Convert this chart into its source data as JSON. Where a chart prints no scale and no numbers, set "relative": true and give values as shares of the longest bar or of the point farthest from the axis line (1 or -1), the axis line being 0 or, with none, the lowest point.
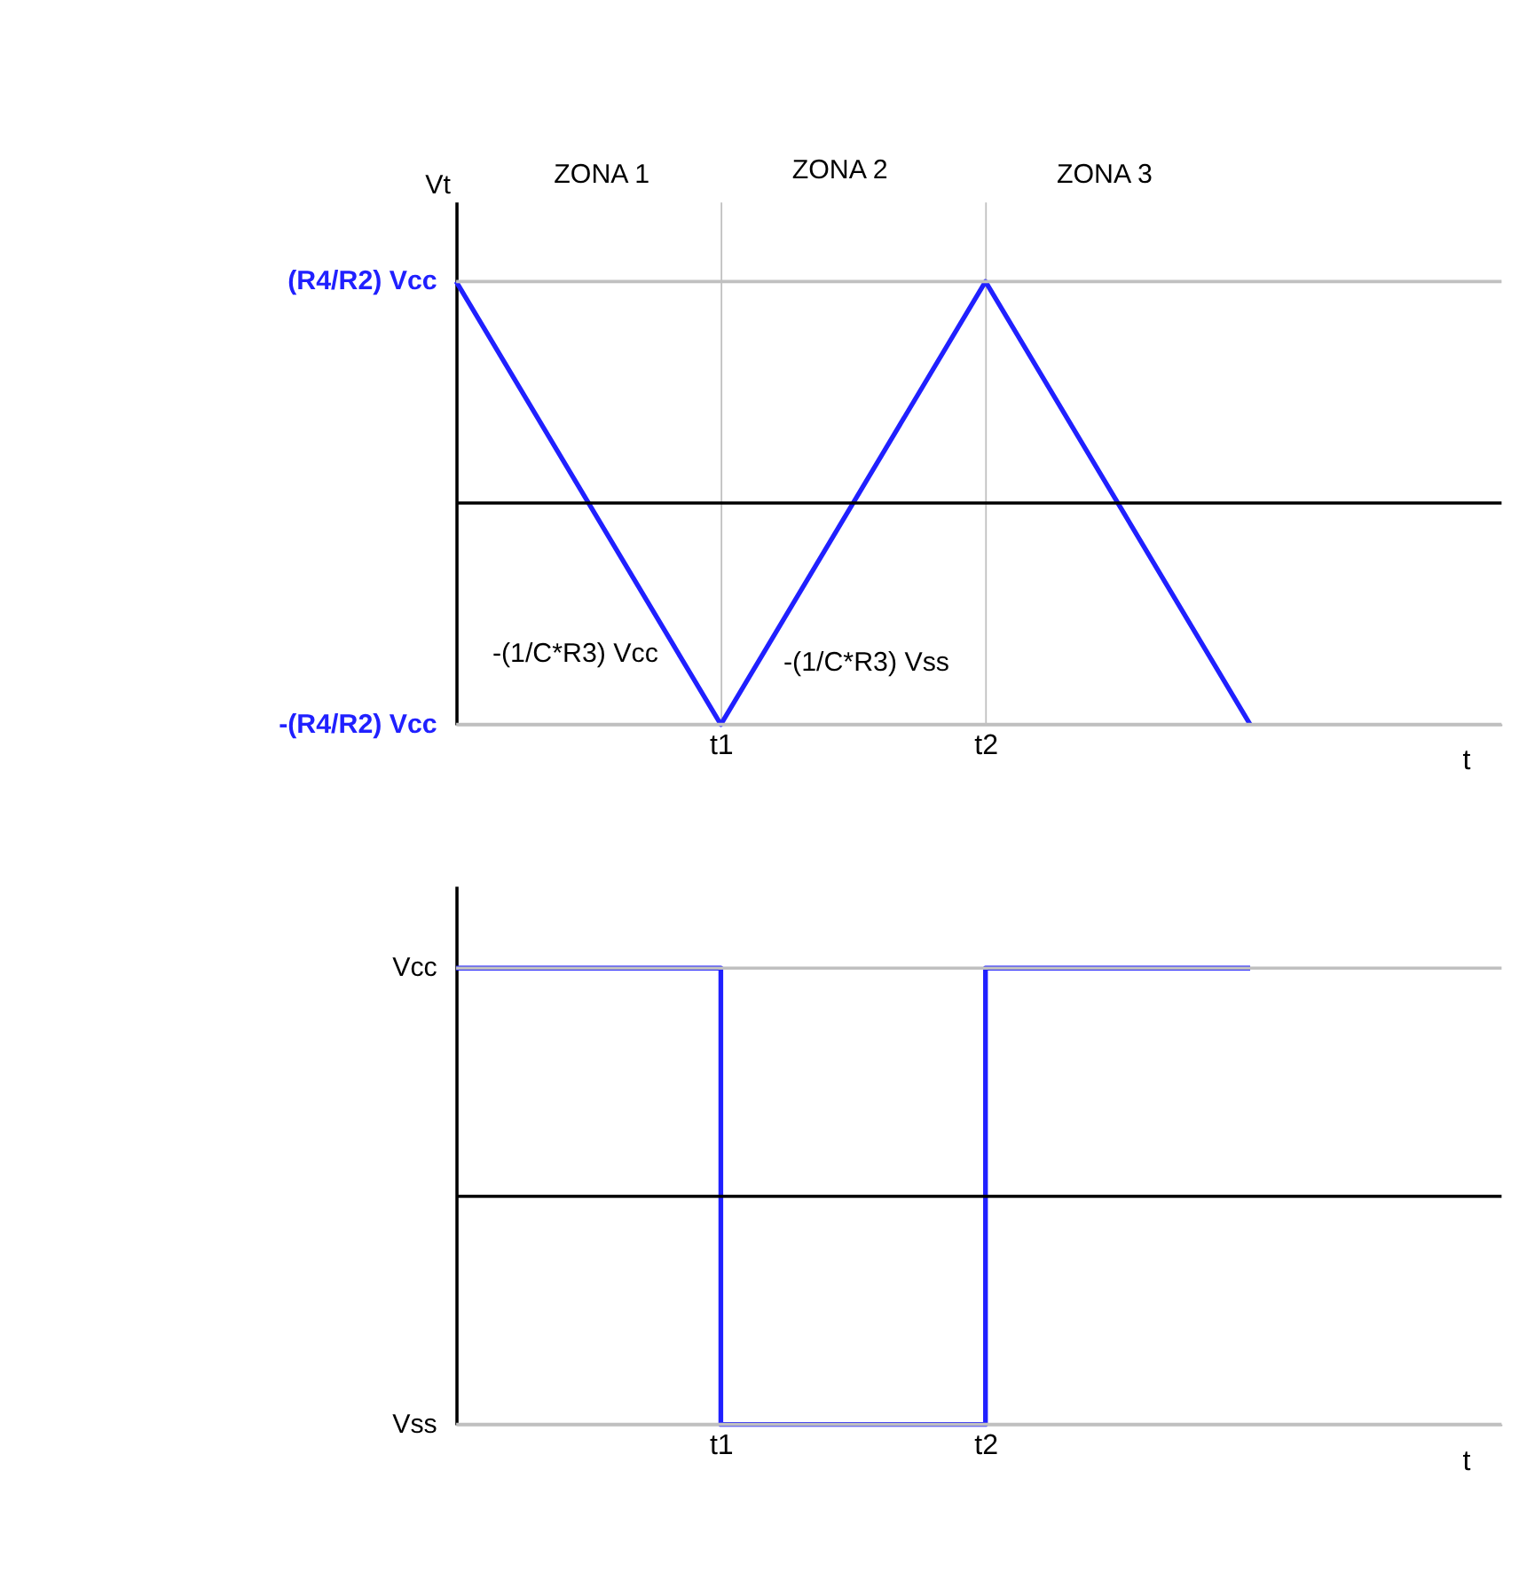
{
  "chart_data": [
    {
      "type": "line",
      "relative": true,
      "ylabel": "Vt",
      "xlabel": "t",
      "categories": [
        null,
        "t1",
        "t2",
        null
      ],
      "series": [
        {
          "color": "#2020ff",
          "values": [
            1,
            0,
            1,
            0
          ]
        }
      ],
      "grid": "x",
      "ref_lines": [
        {
          "axis": "y",
          "value": 1,
          "label": "(R4/R2) Vcc",
          "color": "#c0c0c0"
        },
        {
          "axis": "y",
          "value": 0,
          "label": "-(R4/R2) Vcc",
          "color": "#c0c0c0"
        },
        {
          "axis": "y",
          "value": 0.5,
          "color": "#000000"
        }
      ],
      "annotations": [
        "ZONA 1",
        "ZONA 2",
        "ZONA 3",
        "-(1/C*R3) Vcc",
        "-(1/C*R3) Vss"
      ]
    },
    {
      "type": "step",
      "relative": true,
      "xlabel": "t",
      "categories": [
        null,
        "t1",
        "t2",
        null
      ],
      "series": [
        {
          "color": "#2020ff",
          "values": [
            1,
            0,
            1,
            1
          ]
        }
      ],
      "ref_lines": [
        {
          "axis": "y",
          "value": 1,
          "label": "Vcc",
          "color": "#c0c0c0"
        },
        {
          "axis": "y",
          "value": 0,
          "label": "Vss",
          "color": "#c0c0c0"
        },
        {
          "axis": "y",
          "value": 0.5,
          "color": "#000000"
        }
      ]
    }
  ]
}
